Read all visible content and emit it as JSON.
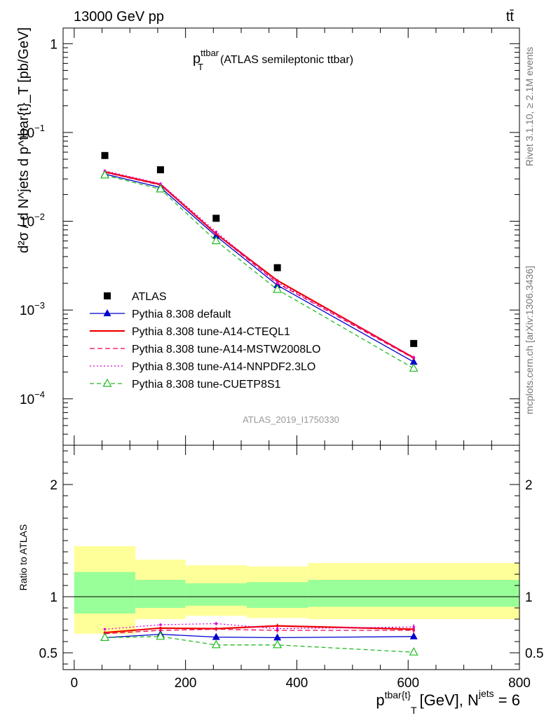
{
  "header": {
    "left": "13000 GeV pp",
    "right": "tt̄"
  },
  "side_labels": {
    "rivet": "Rivet 3.1.10, ≥ 2.1M events",
    "mcplots": "mcplots.cern.ch [arXiv:1306.3436]"
  },
  "chart_data": [
    {
      "type": "line",
      "panel": "main",
      "title_main": "p",
      "title_sup": "ttbar",
      "title_sub": "T",
      "title_rest": "(ATLAS semileptonic ttbar)",
      "watermark": "ATLAS_2019_I1750330",
      "ylabel": "d²σ / d N^jets d p^tbar{t}_T [pb/GeV]",
      "y_scale": "log",
      "ylim": [
        3e-05,
        1.5
      ],
      "xlim": [
        -20,
        800
      ],
      "y_ticks": [
        {
          "value": 1,
          "base": "1",
          "exp": ""
        },
        {
          "value": 0.1,
          "base": "10",
          "exp": "−1"
        },
        {
          "value": 0.01,
          "base": "10",
          "exp": "−2"
        },
        {
          "value": 0.001,
          "base": "10",
          "exp": "−3"
        },
        {
          "value": 0.0001,
          "base": "10",
          "exp": "−4"
        }
      ],
      "legend_position": "bottom-left",
      "x": [
        55,
        155,
        255,
        365,
        610
      ],
      "series": [
        {
          "name": "ATLAS",
          "values": [
            0.055,
            0.038,
            0.0108,
            0.003,
            0.00042
          ],
          "color": "#000000",
          "style": "markers-square"
        },
        {
          "name": "Pythia 8.308 default",
          "values": [
            0.034,
            0.024,
            0.0068,
            0.0019,
            0.00026
          ],
          "color": "#0000cc",
          "style": "solid-triangle"
        },
        {
          "name": "Pythia 8.308 tune-A14-CTEQL1",
          "values": [
            0.036,
            0.026,
            0.0072,
            0.00215,
            0.00029
          ],
          "color": "#ee0000",
          "style": "solid-thick"
        },
        {
          "name": "Pythia 8.308 tune-A14-MSTW2008LO",
          "values": [
            0.0355,
            0.0255,
            0.0072,
            0.002,
            0.000285
          ],
          "color": "#ee0055",
          "style": "dashed"
        },
        {
          "name": "Pythia 8.308 tune-A14-NNPDF2.3LO",
          "values": [
            0.037,
            0.0265,
            0.0076,
            0.00205,
            0.000295
          ],
          "color": "#dd00dd",
          "style": "dotted"
        },
        {
          "name": "Pythia 8.308 tune-CUETP8S1",
          "values": [
            0.033,
            0.023,
            0.006,
            0.0017,
            0.00022
          ],
          "color": "#22bb22",
          "style": "dashed-open-triangle"
        }
      ]
    },
    {
      "type": "line",
      "panel": "ratio",
      "ylabel": "Ratio to ATLAS",
      "xlabel_main": "p",
      "xlabel_sup": "tbar{t}",
      "xlabel_sub": "T",
      "xlabel_rest": "[GeV], N",
      "xlabel_sup2": "jets",
      "xlabel_end": " = 6",
      "ylim": [
        0.35,
        2.35
      ],
      "xlim": [
        -20,
        800
      ],
      "y_ticks": [
        {
          "value": 0.5,
          "label": "0.5"
        },
        {
          "value": 1,
          "label": "1"
        },
        {
          "value": 2,
          "label": "2"
        }
      ],
      "x_ticks": [
        {
          "value": 0,
          "label": "0"
        },
        {
          "value": 200,
          "label": "200"
        },
        {
          "value": 400,
          "label": "400"
        },
        {
          "value": 600,
          "label": "600"
        },
        {
          "value": 800,
          "label": "800"
        }
      ],
      "bands": [
        {
          "x0": 0,
          "x1": 110,
          "green": [
            0.85,
            1.22
          ],
          "yellow": [
            0.67,
            1.45
          ]
        },
        {
          "x0": 110,
          "x1": 200,
          "green": [
            0.9,
            1.15
          ],
          "yellow": [
            0.8,
            1.33
          ]
        },
        {
          "x0": 200,
          "x1": 310,
          "green": [
            0.92,
            1.12
          ],
          "yellow": [
            0.83,
            1.28
          ]
        },
        {
          "x0": 310,
          "x1": 420,
          "green": [
            0.9,
            1.13
          ],
          "yellow": [
            0.81,
            1.27
          ]
        },
        {
          "x0": 420,
          "x1": 800,
          "green": [
            0.91,
            1.15
          ],
          "yellow": [
            0.8,
            1.3
          ]
        }
      ],
      "x": [
        55,
        155,
        255,
        365,
        610
      ],
      "series": [
        {
          "name": "Pythia 8.308 default",
          "values": [
            0.635,
            0.665,
            0.64,
            0.635,
            0.645
          ],
          "errors": [
            0.01,
            0.012,
            0.012,
            0.015,
            0.02
          ]
        },
        {
          "name": "Pythia 8.308 tune-A14-CTEQL1",
          "values": [
            0.68,
            0.72,
            0.715,
            0.74,
            0.71
          ],
          "errors": [
            0.01,
            0.012,
            0.015,
            0.02,
            0.025
          ]
        },
        {
          "name": "Pythia 8.308 tune-A14-MSTW2008LO",
          "values": [
            0.67,
            0.7,
            0.71,
            0.7,
            0.7
          ],
          "errors": [
            0.01,
            0.012,
            0.015,
            0.02,
            0.025
          ]
        },
        {
          "name": "Pythia 8.308 tune-A14-NNPDF2.3LO",
          "values": [
            0.71,
            0.75,
            0.76,
            0.715,
            0.73
          ],
          "errors": [
            0.01,
            0.012,
            0.015,
            0.02,
            0.025
          ]
        },
        {
          "name": "Pythia 8.308 tune-CUETP8S1",
          "values": [
            0.635,
            0.645,
            0.57,
            0.57,
            0.505
          ],
          "errors": [
            0.01,
            0.012,
            0.015,
            0.02,
            0.025
          ]
        }
      ]
    }
  ]
}
